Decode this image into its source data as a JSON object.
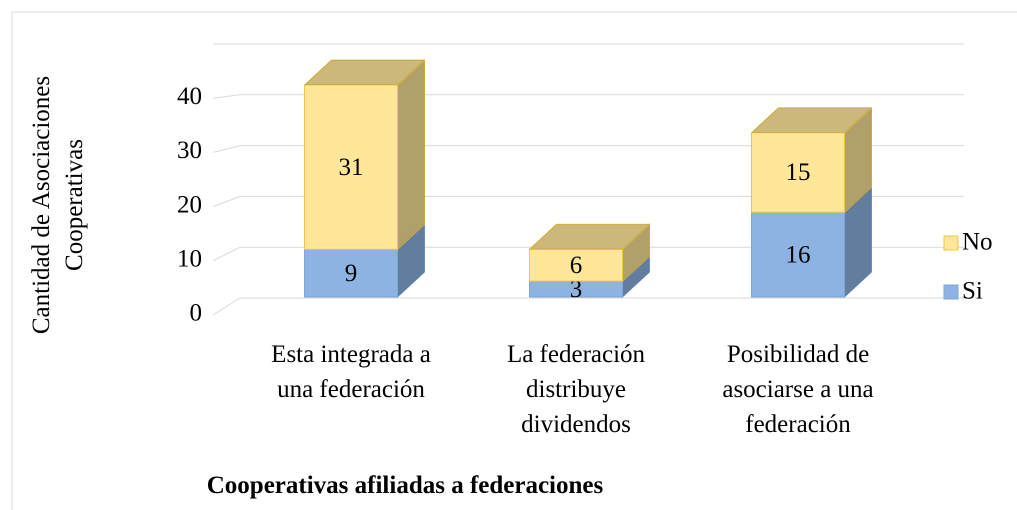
{
  "chart_data": {
    "type": "bar3d_stacked",
    "title": "Cooperativas afiliadas a federaciones",
    "y_label": "Cantidad de Asociaciones Cooperativas",
    "categories": [
      "Esta integrada a una federación",
      "La federación distribuye dividendos",
      "Posibilidad de asociarse a una federación"
    ],
    "series": [
      {
        "name": "Si",
        "color": "#8db3e2",
        "values": [
          9,
          3,
          16
        ]
      },
      {
        "name": "No",
        "color": "#ffe699",
        "values": [
          31,
          6,
          15
        ]
      }
    ],
    "ylim": [
      0,
      50
    ],
    "yticks": [
      0,
      10,
      20,
      30,
      40
    ],
    "grid": true,
    "legend": "right"
  }
}
